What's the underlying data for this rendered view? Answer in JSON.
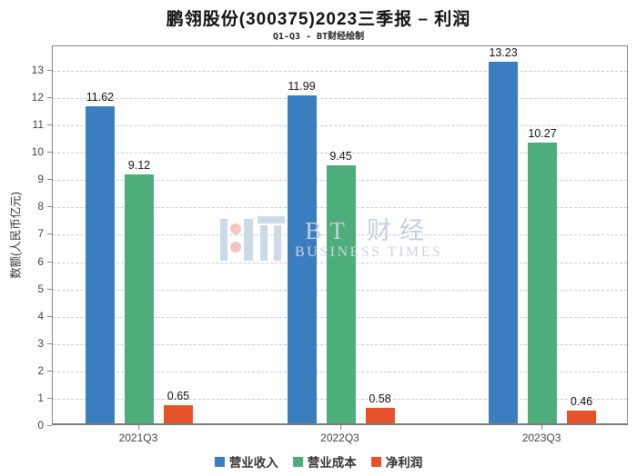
{
  "title": "鹏翎股份(300375)2023三季报 – 利润",
  "subtitle": "Q1-Q3 - BT财经绘制",
  "watermark": {
    "brand": "BT 财经",
    "sub": "BUSINESS TIMES"
  },
  "chart_data": {
    "type": "bar",
    "title": "鹏翎股份(300375)2023三季报 – 利润",
    "subtitle": "Q1-Q3 - BT财经绘制",
    "categories": [
      "2021Q3",
      "2022Q3",
      "2023Q3"
    ],
    "series": [
      {
        "name": "营业收入",
        "color": "#3a7ebf",
        "values": [
          11.62,
          11.99,
          13.23
        ]
      },
      {
        "name": "营业成本",
        "color": "#4dae7c",
        "values": [
          9.12,
          9.45,
          10.27
        ]
      },
      {
        "name": "净利润",
        "color": "#e8522b",
        "values": [
          0.65,
          0.58,
          0.46
        ]
      }
    ],
    "value_labels": [
      [
        "11.62",
        "9.12",
        "0.65"
      ],
      [
        "11.99",
        "9.45",
        "0.58"
      ],
      [
        "13.23",
        "10.27",
        "0.46"
      ]
    ],
    "xlabel": "",
    "ylabel": "数额(人民币亿元)",
    "yticks": [
      0,
      1,
      2,
      3,
      4,
      5,
      6,
      7,
      8,
      9,
      10,
      11,
      12,
      13
    ],
    "ylim": [
      0,
      13.9
    ],
    "grid": "horizontal-dashed",
    "legend_position": "bottom",
    "colors": {
      "axis_border": "#888888",
      "gridline": "#cccccc",
      "text": "#444444"
    }
  }
}
